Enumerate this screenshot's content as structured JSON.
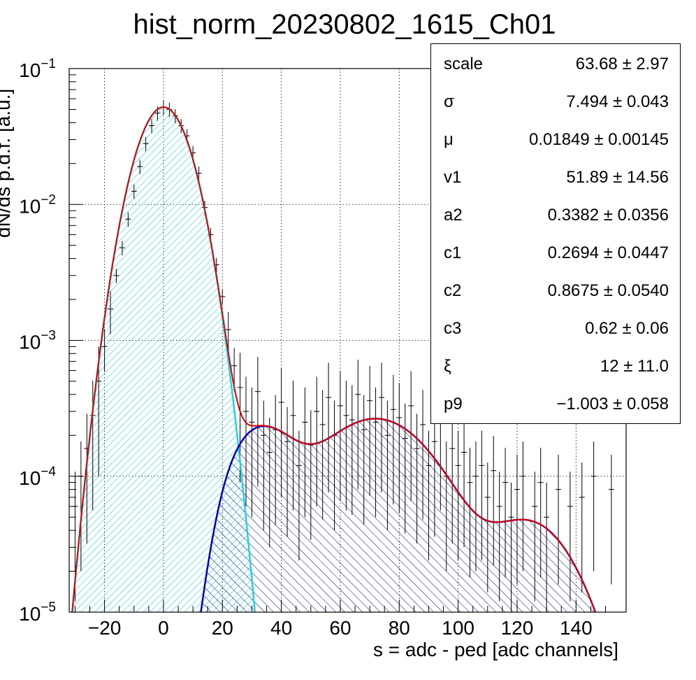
{
  "chart_data": {
    "type": "histogram",
    "title": "hist_norm_20230802_1615_Ch01",
    "xlabel": "s = adc - ped [adc channels]",
    "ylabel": "dN/ds p.d.f. [a.u.]",
    "xlim": [
      -32,
      157
    ],
    "ylim": [
      1e-05,
      0.1
    ],
    "y_log_scale": true,
    "grid": true,
    "x_ticks": [
      -20,
      0,
      20,
      40,
      60,
      80,
      100,
      120,
      140
    ],
    "x_tick_labels": [
      "−20",
      "0",
      "20",
      "40",
      "60",
      "80",
      "100",
      "120",
      "140"
    ],
    "y_ticks": [
      1e-05,
      0.0001,
      0.001,
      0.01,
      0.1
    ],
    "y_tick_labels": [
      {
        "base": "10",
        "exp": "−5"
      },
      {
        "base": "10",
        "exp": "−4"
      },
      {
        "base": "10",
        "exp": "−3"
      },
      {
        "base": "10",
        "exp": "−2"
      },
      {
        "base": "10",
        "exp": "−1"
      }
    ],
    "colors": {
      "total_fit": "#e00000",
      "pedestal": "#22d3e6",
      "signal": "#0000c0",
      "data": "#000000"
    },
    "data_points": [
      [
        -30,
        6e-05
      ],
      [
        -28,
        0.0001
      ],
      [
        -26,
        0.00016
      ],
      [
        -24,
        0.00028
      ],
      [
        -22,
        0.0005
      ],
      [
        -20,
        0.0009
      ],
      [
        -18,
        0.0017
      ],
      [
        -16,
        0.003
      ],
      [
        -14,
        0.0048
      ],
      [
        -12,
        0.0078
      ],
      [
        -10,
        0.0125
      ],
      [
        -8,
        0.019
      ],
      [
        -6,
        0.028
      ],
      [
        -4,
        0.038
      ],
      [
        -2,
        0.047
      ],
      [
        0,
        0.052
      ],
      [
        2,
        0.05
      ],
      [
        4,
        0.045
      ],
      [
        6,
        0.038
      ],
      [
        8,
        0.032
      ],
      [
        10,
        0.024
      ],
      [
        12,
        0.017
      ],
      [
        14,
        0.0095
      ],
      [
        16,
        0.006
      ],
      [
        18,
        0.0036
      ],
      [
        20,
        0.0021
      ],
      [
        22,
        0.0012
      ],
      [
        24,
        0.00065
      ],
      [
        26,
        0.00045
      ],
      [
        28,
        0.0003
      ],
      [
        30,
        0.00025
      ],
      [
        32,
        0.00042
      ],
      [
        34,
        0.0002
      ],
      [
        36,
        0.00015
      ],
      [
        38,
        0.00022
      ],
      [
        40,
        0.00035
      ],
      [
        42,
        0.00018
      ],
      [
        44,
        0.00028
      ],
      [
        46,
        0.00012
      ],
      [
        48,
        0.00025
      ],
      [
        50,
        0.00017
      ],
      [
        52,
        0.0003
      ],
      [
        54,
        0.00024
      ],
      [
        56,
        0.00038
      ],
      [
        58,
        0.0002
      ],
      [
        60,
        0.00033
      ],
      [
        62,
        0.00028
      ],
      [
        64,
        0.00026
      ],
      [
        66,
        0.0004
      ],
      [
        68,
        0.00022
      ],
      [
        70,
        0.00036
      ],
      [
        72,
        0.00025
      ],
      [
        74,
        0.00038
      ],
      [
        76,
        0.0002
      ],
      [
        78,
        0.00031
      ],
      [
        80,
        0.00027
      ],
      [
        82,
        0.00019
      ],
      [
        84,
        0.00033
      ],
      [
        86,
        0.00016
      ],
      [
        88,
        0.00024
      ],
      [
        90,
        0.00012
      ],
      [
        92,
        0.00018
      ],
      [
        94,
        0.00028
      ],
      [
        96,
        0.0001
      ],
      [
        98,
        0.00016
      ],
      [
        100,
        0.00012
      ],
      [
        102,
        0.00015
      ],
      [
        104,
        9e-05
      ],
      [
        106,
        0.0001
      ],
      [
        108,
        0.00012
      ],
      [
        110,
        7e-05
      ],
      [
        112,
        0.00011
      ],
      [
        114,
        6e-05
      ],
      [
        116,
        9e-05
      ],
      [
        118,
        5e-05
      ],
      [
        120,
        8e-05
      ],
      [
        122,
        0.0001
      ],
      [
        126,
        6e-05
      ],
      [
        128,
        9e-05
      ],
      [
        130,
        5e-05
      ],
      [
        134,
        8e-05
      ],
      [
        138,
        6e-05
      ],
      [
        142,
        7e-05
      ],
      [
        146,
        0.0001
      ],
      [
        152,
        8e-05
      ]
    ],
    "fit_params": {
      "pedestal_amp": 0.052,
      "mu": 0.01849,
      "sigma": 7.494,
      "signal_peaks": [
        [
          32,
          0.00022,
          11
        ],
        [
          72,
          0.000265,
          17
        ],
        [
          124,
          4.5e-05,
          13
        ]
      ]
    }
  },
  "stats": {
    "rows": [
      {
        "name": "scale",
        "value": "63.68 ± 2.97"
      },
      {
        "name": "σ",
        "value": "7.494 ± 0.043"
      },
      {
        "name": "μ",
        "value": "0.01849 ± 0.00145"
      },
      {
        "name": "v1",
        "value": "51.89 ± 14.56"
      },
      {
        "name": "a2",
        "value": "0.3382 ± 0.0356"
      },
      {
        "name": "c1",
        "value": "0.2694 ± 0.0447"
      },
      {
        "name": "c2",
        "value": "0.8675 ± 0.0540"
      },
      {
        "name": "c3",
        "value": "0.62 ± 0.06"
      },
      {
        "name": "ξ",
        "value": "12 ± 11.0"
      },
      {
        "name": "p9",
        "value": "−1.003 ± 0.058"
      }
    ]
  }
}
